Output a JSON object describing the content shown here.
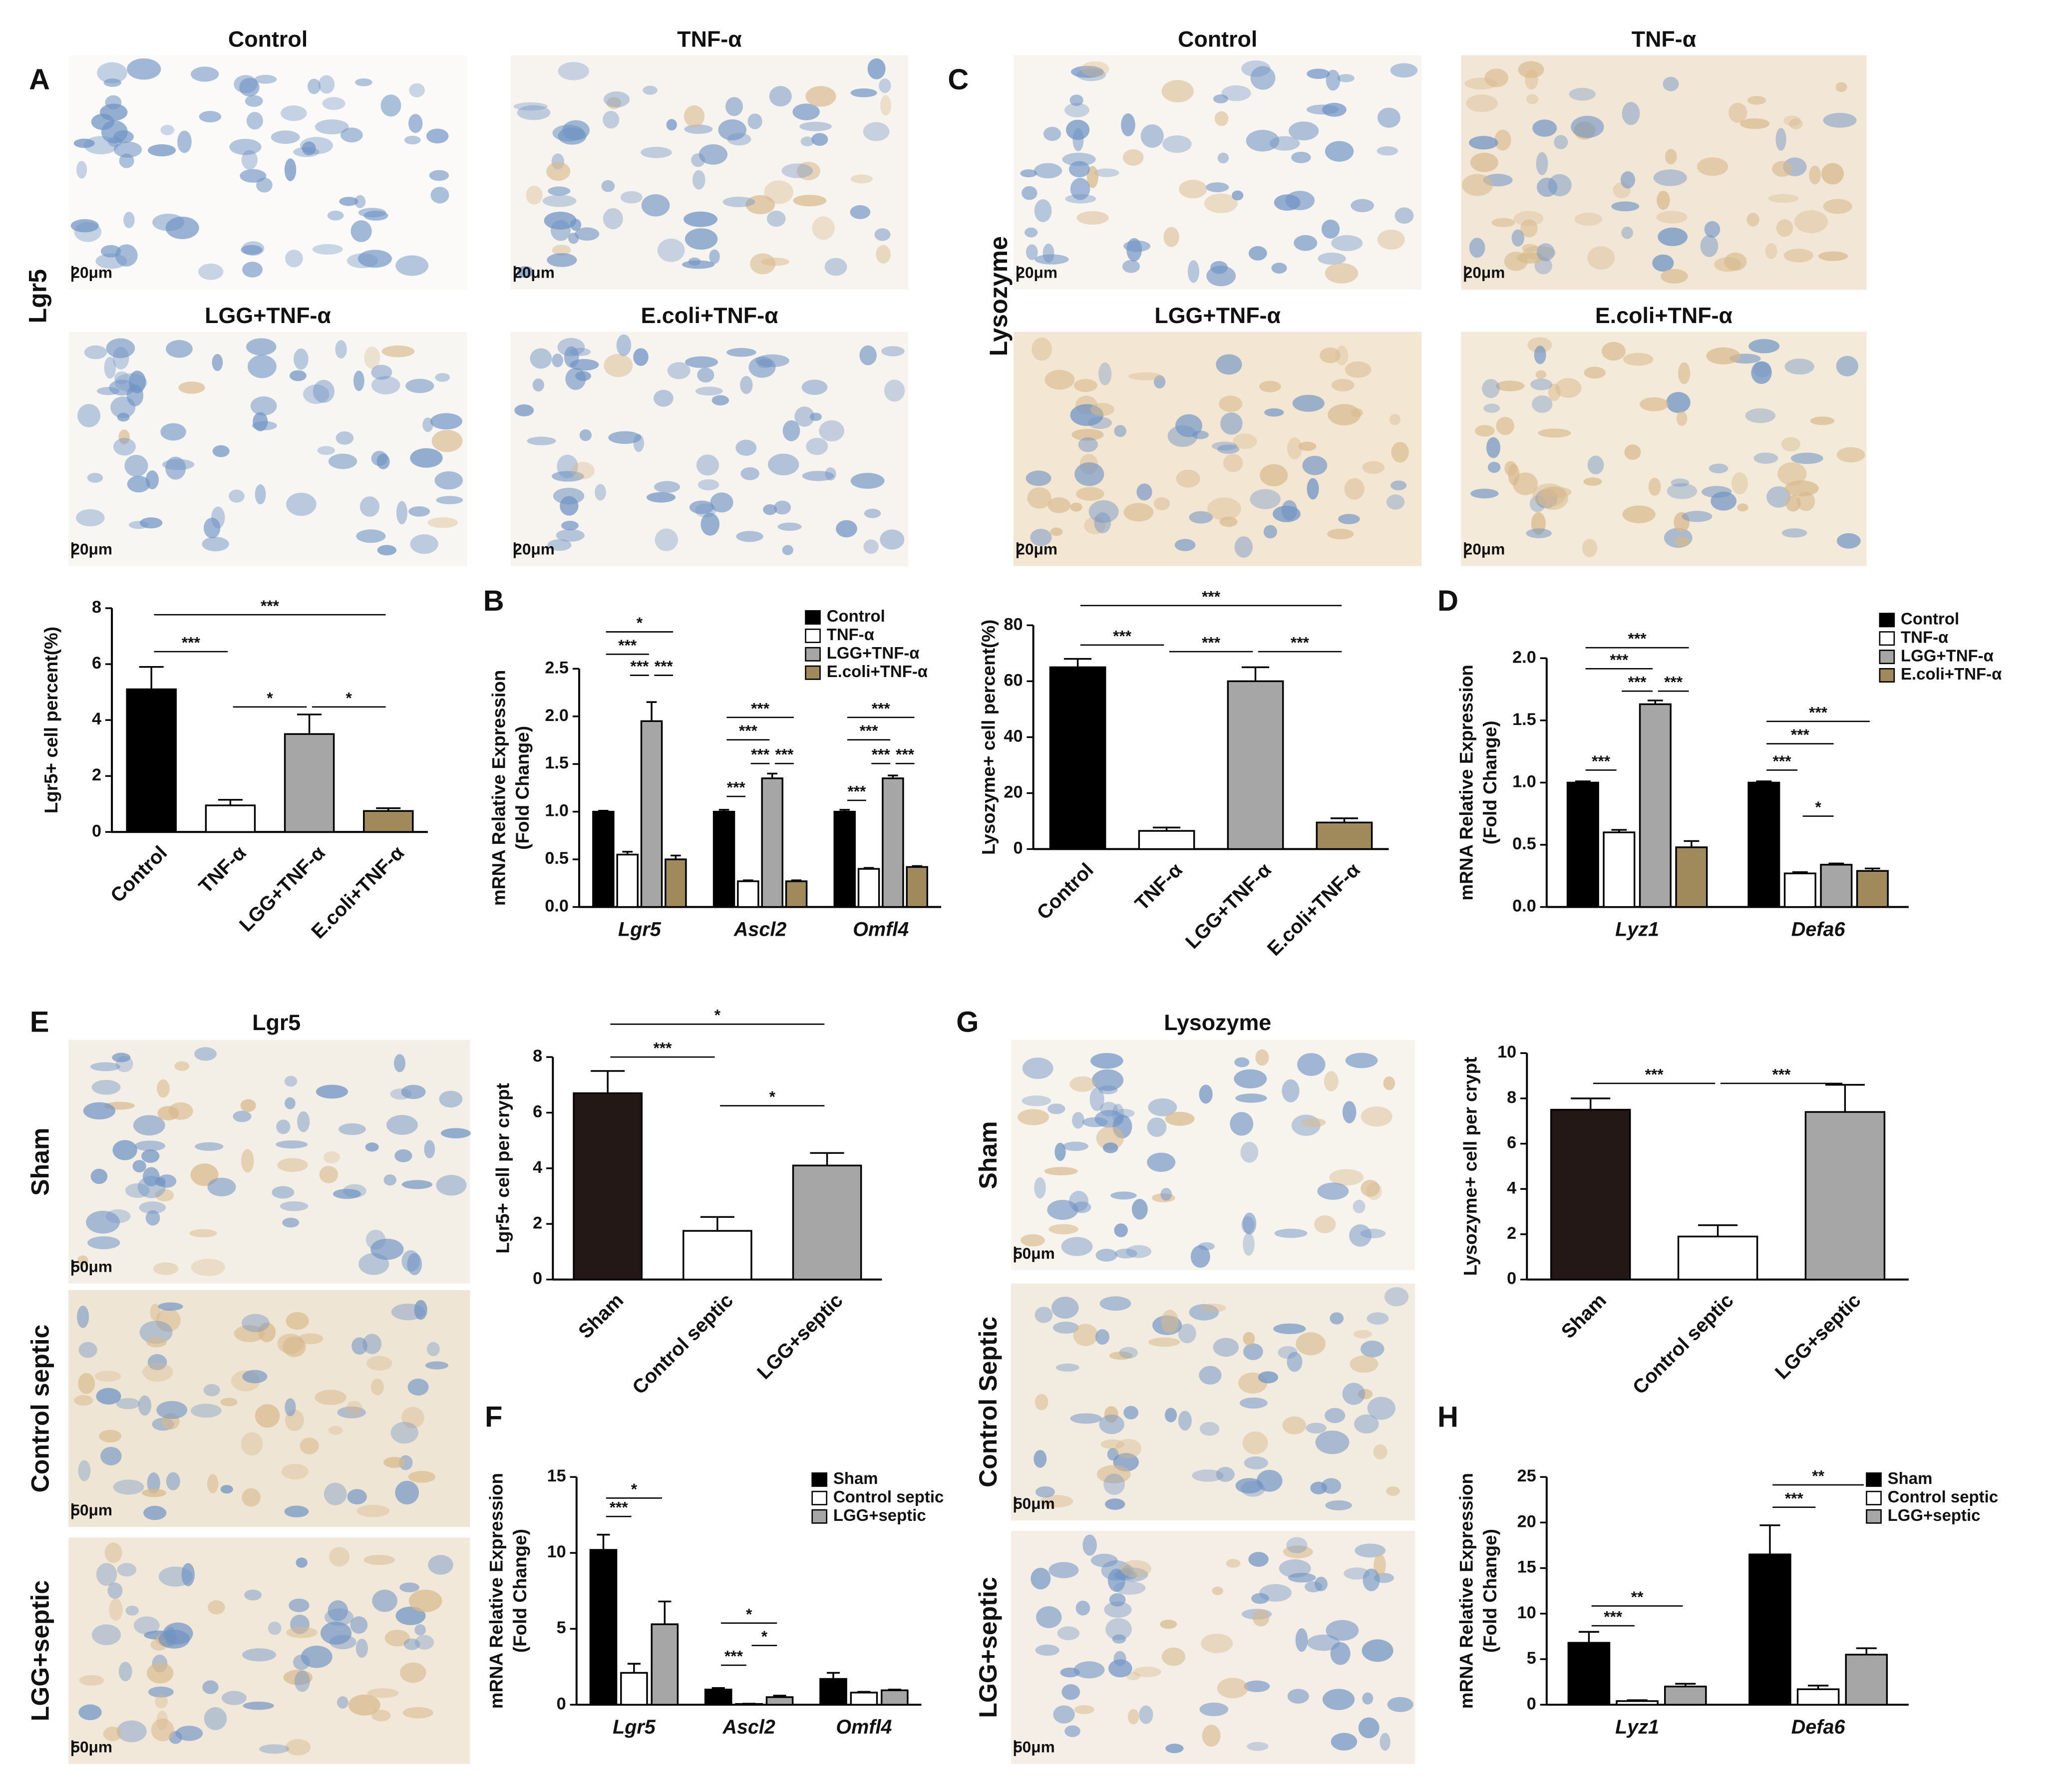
{
  "panel_letters": [
    "A",
    "B",
    "C",
    "D",
    "E",
    "F",
    "G",
    "H"
  ],
  "micrographs": [
    {
      "row_label": "Lgr5",
      "images": [
        {
          "title": "Control",
          "scale_bar": "20μm"
        },
        {
          "title": "TNF-α",
          "scale_bar": "20μm"
        },
        {
          "title": "LGG+TNF-α",
          "scale_bar": "20μm"
        },
        {
          "title": "E.coli+TNF-α",
          "scale_bar": "20μm"
        }
      ]
    },
    {
      "row_label": "Lysozyme",
      "images": [
        {
          "title": "Control",
          "scale_bar": "20μm"
        },
        {
          "title": "TNF-α",
          "scale_bar": "20μm"
        },
        {
          "title": "LGG+TNF-α",
          "scale_bar": "20μm"
        },
        {
          "title": "E.coli+TNF-α",
          "scale_bar": "20μm"
        }
      ]
    },
    {
      "title": "Lgr5",
      "images": [
        {
          "row_label": "Sham",
          "scale_bar": "50μm"
        },
        {
          "row_label": "Control septic",
          "scale_bar": "50μm"
        },
        {
          "row_label": "LGG+septic",
          "scale_bar": "50μm"
        }
      ]
    },
    {
      "title": "Lysozyme",
      "images": [
        {
          "row_label": "Sham",
          "scale_bar": "50μm"
        },
        {
          "row_label": "Control Septic",
          "scale_bar": "50μm"
        },
        {
          "row_label": "LGG+septic",
          "scale_bar": "50μm"
        }
      ]
    }
  ],
  "chart_data": [
    {
      "type": "bar",
      "ylabel": [
        "Lgr5+ cell percent(%)"
      ],
      "categories": [
        "Control",
        "TNF-α",
        "LGG+TNF-α",
        "E.coli+TNF-α"
      ],
      "values": [
        5.1,
        0.95,
        3.5,
        0.75
      ],
      "errors": [
        0.8,
        0.2,
        0.7,
        0.1
      ],
      "colors": [
        "#000000",
        "#ffffff",
        "#a6a6a6",
        "#a08a5c"
      ],
      "ylim": [
        0,
        8
      ],
      "yticks": [
        0,
        2,
        4,
        6,
        8
      ],
      "annotations": [
        "***",
        "***",
        "*",
        "*"
      ]
    },
    {
      "type": "bar",
      "ylabel": [
        "mRNA Relative Expression",
        "(Fold Change)"
      ],
      "categories": [
        "Lgr5",
        "Ascl2",
        "Omfl4"
      ],
      "italic_categories": true,
      "series": [
        {
          "name": "Control",
          "color": "#000000",
          "values": [
            1.0,
            1.0,
            1.0
          ],
          "errors": [
            0.01,
            0.02,
            0.02
          ]
        },
        {
          "name": "TNF-α",
          "color": "#ffffff",
          "values": [
            0.55,
            0.27,
            0.4
          ],
          "errors": [
            0.03,
            0.01,
            0.01
          ]
        },
        {
          "name": "LGG+TNF-α",
          "color": "#a6a6a6",
          "values": [
            1.95,
            1.35,
            1.35
          ],
          "errors": [
            0.2,
            0.05,
            0.03
          ]
        },
        {
          "name": "E.coli+TNF-α",
          "color": "#a08a5c",
          "values": [
            0.5,
            0.27,
            0.42
          ],
          "errors": [
            0.04,
            0.01,
            0.01
          ]
        }
      ],
      "ylim": [
        0,
        2.5
      ],
      "yticks": [
        {
          "value": 0,
          "label": "0.0"
        },
        0.5,
        {
          "value": 1,
          "label": "1.0"
        },
        1.5,
        {
          "value": 2,
          "label": "2.0"
        },
        2.5
      ],
      "annotations": [
        "*",
        "***",
        "***",
        "***",
        "***",
        "***",
        "***",
        "***",
        "***",
        "***",
        "***",
        "***",
        "***",
        "***"
      ]
    },
    {
      "type": "bar",
      "ylabel": [
        "Lysozyme+ cell percent(%)"
      ],
      "categories": [
        "Control",
        "TNF-α",
        "LGG+TNF-α",
        "E.coli+TNF-α"
      ],
      "values": [
        65,
        6.5,
        60,
        9.5
      ],
      "errors": [
        3,
        1.2,
        5,
        1.5
      ],
      "colors": [
        "#000000",
        "#ffffff",
        "#a6a6a6",
        "#a08a5c"
      ],
      "ylim": [
        0,
        80
      ],
      "yticks": [
        0,
        20,
        40,
        60,
        80
      ],
      "annotations": [
        "***",
        "***",
        "***",
        "***"
      ]
    },
    {
      "type": "bar",
      "ylabel": [
        "mRNA Relative Expression",
        "(Fold Change)"
      ],
      "categories": [
        "Lyz1",
        "Defa6"
      ],
      "italic_categories": true,
      "series": [
        {
          "name": "Control",
          "color": "#000000",
          "values": [
            1.0,
            1.0
          ],
          "errors": [
            0.01,
            0.01
          ]
        },
        {
          "name": "TNF-α",
          "color": "#ffffff",
          "values": [
            0.6,
            0.27
          ],
          "errors": [
            0.02,
            0.01
          ]
        },
        {
          "name": "LGG+TNF-α",
          "color": "#a6a6a6",
          "values": [
            1.63,
            0.34
          ],
          "errors": [
            0.03,
            0.01
          ]
        },
        {
          "name": "E.coli+TNF-α",
          "color": "#a08a5c",
          "values": [
            0.48,
            0.29
          ],
          "errors": [
            0.05,
            0.02
          ]
        }
      ],
      "ylim": [
        0,
        2
      ],
      "yticks": [
        {
          "value": 0,
          "label": "0.0"
        },
        0.5,
        {
          "value": 1,
          "label": "1.0"
        },
        1.5,
        {
          "value": 2,
          "label": "2.0"
        }
      ],
      "annotations": [
        "***",
        "***",
        "***",
        "***",
        "***",
        "***",
        "***",
        "***",
        "*"
      ]
    },
    {
      "type": "bar",
      "ylabel": [
        "Lgr5+ cell per crypt"
      ],
      "categories": [
        "Sham",
        "Control septic",
        "LGG+septic"
      ],
      "values": [
        6.7,
        1.75,
        4.1
      ],
      "errors": [
        0.8,
        0.5,
        0.45
      ],
      "colors": [
        "#231815",
        "#ffffff",
        "#a6a6a6"
      ],
      "ylim": [
        0,
        8
      ],
      "yticks": [
        0,
        2,
        4,
        6,
        8
      ],
      "annotations": [
        "*",
        "***",
        "*"
      ]
    },
    {
      "type": "bar",
      "ylabel": [
        "Lysozyme+ cell per crypt"
      ],
      "categories": [
        "Sham",
        "Control septic",
        "LGG+septic"
      ],
      "values": [
        7.5,
        1.9,
        7.4
      ],
      "errors": [
        0.5,
        0.5,
        1.2
      ],
      "colors": [
        "#231815",
        "#ffffff",
        "#a6a6a6"
      ],
      "ylim": [
        0,
        10
      ],
      "yticks": [
        0,
        2,
        4,
        6,
        8,
        10
      ],
      "annotations": [
        "***",
        "***"
      ]
    },
    {
      "type": "bar",
      "ylabel": [
        "mRNA Relative Expression",
        "(Fold Change)"
      ],
      "categories": [
        "Lgr5",
        "Ascl2",
        "Omfl4"
      ],
      "italic_categories": true,
      "series": [
        {
          "name": "Sham",
          "color": "#000000",
          "values": [
            10.2,
            1.0,
            1.7
          ],
          "errors": [
            1.0,
            0.1,
            0.4
          ]
        },
        {
          "name": "Control septic",
          "color": "#ffffff",
          "values": [
            2.1,
            0.05,
            0.8
          ],
          "errors": [
            0.6,
            0.02,
            0.05
          ]
        },
        {
          "name": "LGG+septic",
          "color": "#a6a6a6",
          "values": [
            5.3,
            0.5,
            0.95
          ],
          "errors": [
            1.5,
            0.1,
            0.05
          ]
        }
      ],
      "ylim": [
        0,
        15
      ],
      "yticks": [
        0,
        5,
        10,
        15
      ],
      "annotations": [
        "*",
        "***",
        "*",
        "*",
        "***"
      ]
    },
    {
      "type": "bar",
      "ylabel": [
        "mRNA Relative Expression",
        "(Fold Change)"
      ],
      "categories": [
        "Lyz1",
        "Defa6"
      ],
      "italic_categories": true,
      "series": [
        {
          "name": "Sham",
          "color": "#000000",
          "values": [
            6.8,
            16.5
          ],
          "errors": [
            1.2,
            3.2
          ]
        },
        {
          "name": "Control septic",
          "color": "#ffffff",
          "values": [
            0.4,
            1.7
          ],
          "errors": [
            0.1,
            0.4
          ]
        },
        {
          "name": "LGG+septic",
          "color": "#a6a6a6",
          "values": [
            2.0,
            5.5
          ],
          "errors": [
            0.3,
            0.7
          ]
        }
      ],
      "ylim": [
        0,
        25
      ],
      "yticks": [
        0,
        5,
        10,
        15,
        20,
        25
      ],
      "annotations": [
        "**",
        "***",
        "**",
        "***"
      ]
    }
  ]
}
